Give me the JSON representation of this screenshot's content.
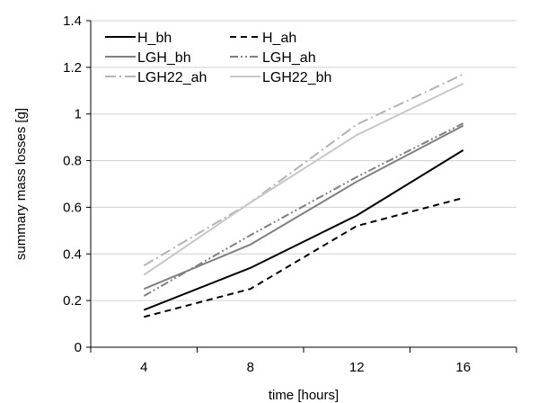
{
  "chart_data": {
    "type": "line",
    "title": "",
    "xlabel": "time [hours]",
    "ylabel": "summary mass losses [g]",
    "x": [
      4,
      8,
      12,
      16
    ],
    "xtick_labels": [
      "4",
      "8",
      "12",
      "16"
    ],
    "ylim": [
      0,
      1.4
    ],
    "yticks": [
      0,
      0.2,
      0.4,
      0.6,
      0.8,
      1,
      1.2,
      1.4
    ],
    "ytick_labels": [
      "0",
      "0.2",
      "0.4",
      "0.6",
      "0.8",
      "1",
      "1.2",
      "1.4"
    ],
    "grid": "horizontal",
    "legend": "top-left",
    "series": [
      {
        "name": "H_bh",
        "values": [
          0.16,
          0.34,
          0.565,
          0.845
        ],
        "color": "#000000",
        "dash": "solid"
      },
      {
        "name": "H_ah",
        "values": [
          0.13,
          0.25,
          0.52,
          0.64
        ],
        "color": "#000000",
        "dash": "dashed"
      },
      {
        "name": "LGH_bh",
        "values": [
          0.25,
          0.44,
          0.71,
          0.95
        ],
        "color": "#808080",
        "dash": "solid"
      },
      {
        "name": "LGH_ah",
        "values": [
          0.22,
          0.48,
          0.73,
          0.96
        ],
        "color": "#808080",
        "dash": "dash-dot-dot"
      },
      {
        "name": "LGH22_ah",
        "values": [
          0.35,
          0.62,
          0.955,
          1.17
        ],
        "color": "#b4b4b4",
        "dash": "dash-dot"
      },
      {
        "name": "LGH22_bh",
        "values": [
          0.31,
          0.62,
          0.91,
          1.13
        ],
        "color": "#c8c8c8",
        "dash": "solid"
      }
    ]
  }
}
